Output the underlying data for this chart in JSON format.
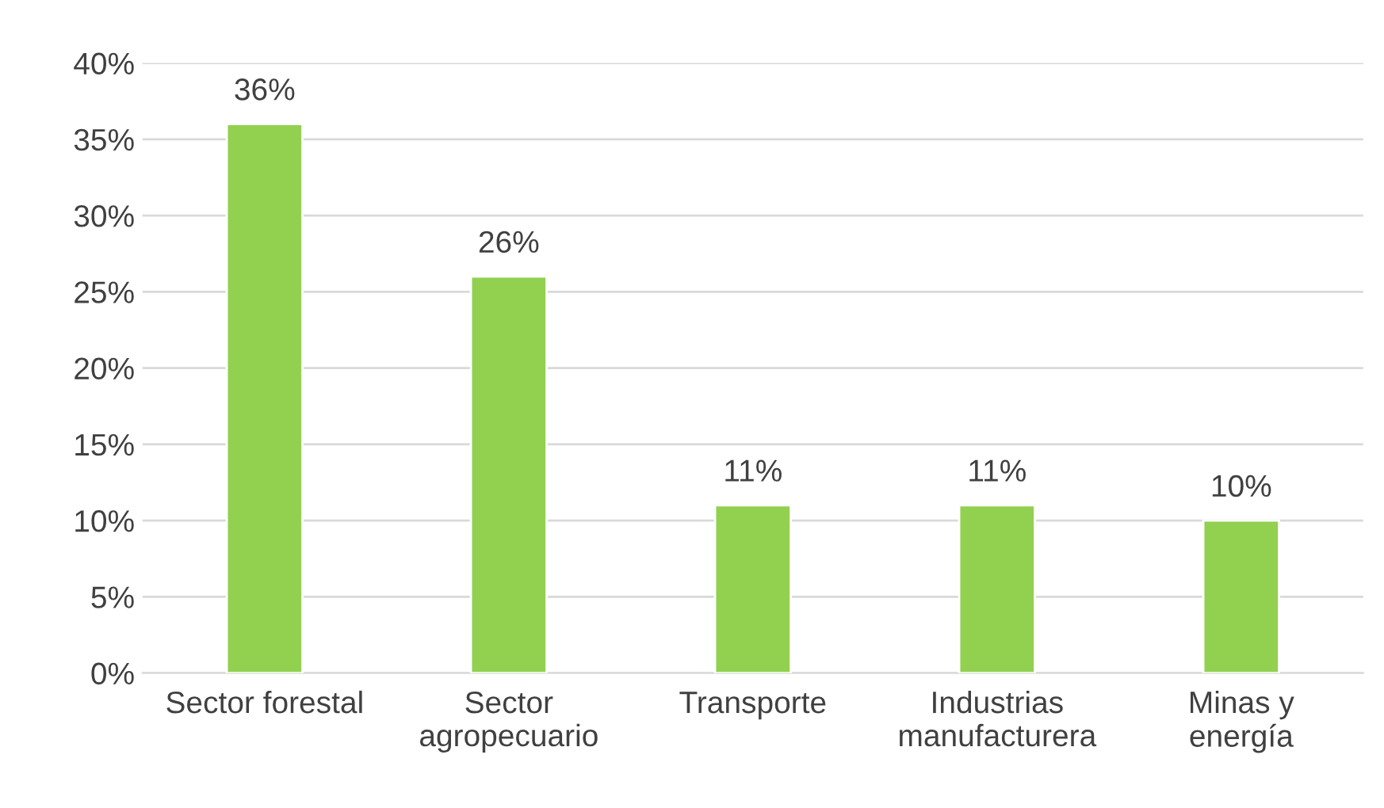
{
  "chart_data": {
    "type": "bar",
    "categories": [
      "Sector forestal",
      "Sector\nagropecuario",
      "Transporte",
      "Industrias\nmanufacturera",
      "Minas y\nenergía"
    ],
    "values": [
      36,
      26,
      11,
      11,
      10
    ],
    "value_labels": [
      "36%",
      "26%",
      "11%",
      "11%",
      "10%"
    ],
    "color": "#92d050",
    "ylim": [
      0,
      40
    ],
    "yticks": [
      {
        "value": 0,
        "label": "0%"
      },
      {
        "value": 5,
        "label": "5%"
      },
      {
        "value": 10,
        "label": "10%"
      },
      {
        "value": 15,
        "label": "15%"
      },
      {
        "value": 20,
        "label": "20%"
      },
      {
        "value": 25,
        "label": "25%"
      },
      {
        "value": 30,
        "label": "30%"
      },
      {
        "value": 35,
        "label": "35%"
      },
      {
        "value": 40,
        "label": "40%"
      }
    ],
    "grid": "y"
  }
}
